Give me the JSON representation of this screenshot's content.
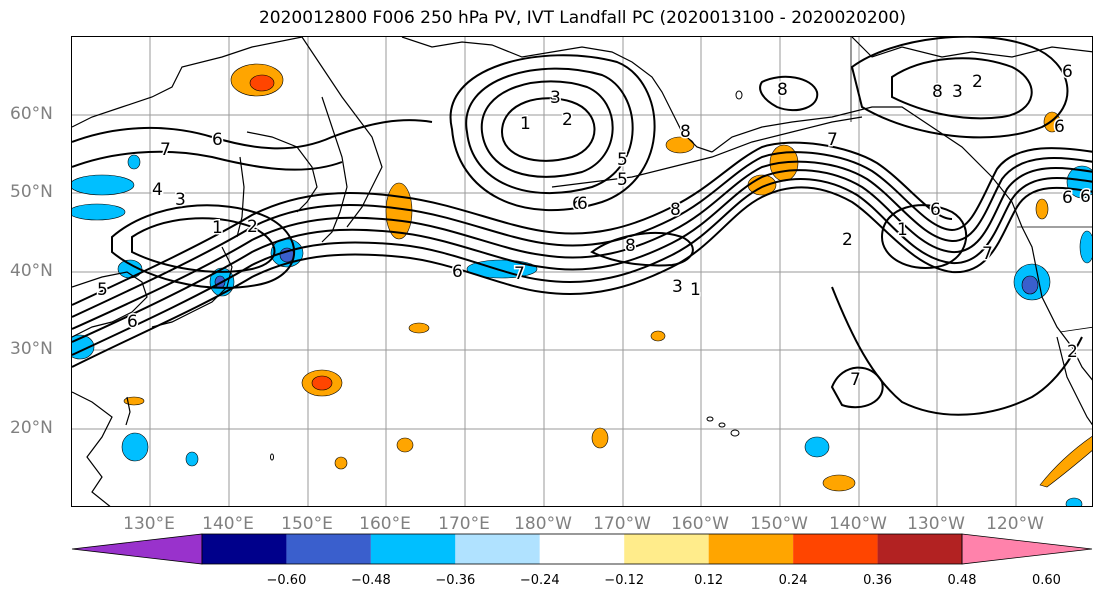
{
  "title": "2020012800 F006 250 hPa PV, IVT Landfall PC (2020013100 - 2020020200)",
  "lat_labels": [
    "60°N",
    "50°N",
    "40°N",
    "30°N",
    "20°N"
  ],
  "lon_labels": [
    "130°E",
    "140°E",
    "150°E",
    "160°E",
    "170°E",
    "180°W",
    "170°W",
    "160°W",
    "150°W",
    "140°W",
    "130°W",
    "120°W"
  ],
  "colorbar": {
    "ticks": [
      "−0.60",
      "−0.48",
      "−0.36",
      "−0.24",
      "−0.12",
      "0.12",
      "0.24",
      "0.36",
      "0.48",
      "0.60"
    ],
    "colors": [
      "#9932CC",
      "#00008B",
      "#3A5FCD",
      "#00BFFF",
      "#B0E2FF",
      "#FFFFFF",
      "#FFEC8B",
      "#FFA500",
      "#FF4500",
      "#B22222",
      "#FF82AB"
    ]
  },
  "contour_labels": [
    "1",
    "2",
    "3",
    "4",
    "5",
    "6",
    "7",
    "8"
  ],
  "map_contour_labels": [
    {
      "t": "1"
    },
    {
      "t": "2"
    },
    {
      "t": "3"
    },
    {
      "t": "7"
    },
    {
      "t": "6"
    },
    {
      "t": "4"
    },
    {
      "t": "3"
    },
    {
      "t": "1"
    },
    {
      "t": "2"
    },
    {
      "t": "5"
    },
    {
      "t": "6"
    },
    {
      "t": "6"
    },
    {
      "t": "7"
    },
    {
      "t": "6"
    },
    {
      "t": "5"
    },
    {
      "t": "8"
    },
    {
      "t": "8"
    },
    {
      "t": "8"
    },
    {
      "t": "3"
    },
    {
      "t": "1"
    },
    {
      "t": "6"
    },
    {
      "t": "5"
    },
    {
      "t": "6"
    },
    {
      "t": "7"
    },
    {
      "t": "8"
    },
    {
      "t": "6"
    },
    {
      "t": "1"
    },
    {
      "t": "6"
    },
    {
      "t": "2"
    },
    {
      "t": "7"
    },
    {
      "t": "3"
    },
    {
      "t": "6"
    },
    {
      "t": "6"
    },
    {
      "t": "7"
    },
    {
      "t": "2"
    },
    {
      "t": "8"
    },
    {
      "t": "2"
    }
  ]
}
